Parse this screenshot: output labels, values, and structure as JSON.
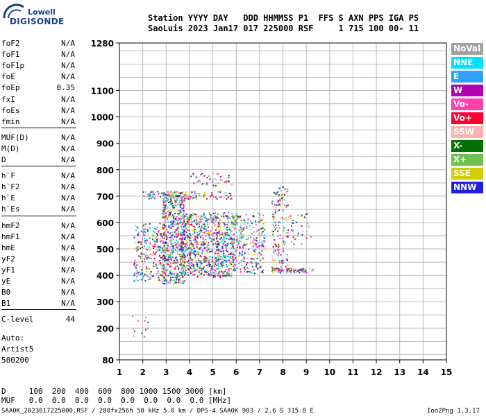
{
  "logo": {
    "line1": "Lowell",
    "line2": "DIGISONDE"
  },
  "header": {
    "line1": "Station YYYY DAY   DDD HHMMSS P1  FFS S AXN PPS IGA PS",
    "line2": "SaoLuis 2023 Jan17 017 225000 RSF     1 715 100 00- 11"
  },
  "params": [
    {
      "name": "foF2",
      "value": "N/A"
    },
    {
      "name": "foF1",
      "value": "N/A"
    },
    {
      "name": "foF1p",
      "value": "N/A"
    },
    {
      "name": "foE",
      "value": "N/A"
    },
    {
      "name": "foEp",
      "value": "0.35"
    },
    {
      "name": "fxI",
      "value": "N/A"
    },
    {
      "name": "foEs",
      "value": "N/A"
    },
    {
      "name": "fmin",
      "value": "N/A"
    },
    {
      "name": "MUF(D)",
      "value": "N/A"
    },
    {
      "name": "M(D)",
      "value": "N/A"
    },
    {
      "name": "D",
      "value": "N/A"
    },
    {
      "name": "h`F",
      "value": "N/A"
    },
    {
      "name": "h`F2",
      "value": "N/A"
    },
    {
      "name": "h`E",
      "value": "N/A"
    },
    {
      "name": "h`Es",
      "value": "N/A"
    },
    {
      "name": "hmF2",
      "value": "N/A"
    },
    {
      "name": "hmF1",
      "value": "N/A"
    },
    {
      "name": "hmE",
      "value": "N/A"
    },
    {
      "name": "yF2",
      "value": "N/A"
    },
    {
      "name": "yF1",
      "value": "N/A"
    },
    {
      "name": "yE",
      "value": "N/A"
    },
    {
      "name": "B0",
      "value": "N/A"
    },
    {
      "name": "B1",
      "value": "N/A"
    },
    {
      "name": "C-level",
      "value": "44"
    }
  ],
  "autoscaling": {
    "line1": "Auto:",
    "line2": "Artist5",
    "line3": "500200"
  },
  "footer": {
    "d_row": "D     100  200  400  600  800 1000 1500 3000 [km]",
    "muf_row": "MUF   0.0  0.0  0.0  0.0  0.0  0.0  0.0  0.0 [MHz]",
    "file_info": "SAA0K_2023017225000.RSF / 280fx256h 50 kHz 5.0 km / DPS-4 SAA0K 903 / 2.6 S 315.8 E",
    "version": "Ion2Png 1.3.17"
  },
  "legend": [
    {
      "label": "NoVal",
      "color": "#a0a0a0"
    },
    {
      "label": "NNE",
      "color": "#00e0ff"
    },
    {
      "label": "E",
      "color": "#30a0ff"
    },
    {
      "label": "W",
      "color": "#b000b0"
    },
    {
      "label": "Vo-",
      "color": "#ff40b0"
    },
    {
      "label": "Vo+",
      "color": "#ff0030"
    },
    {
      "label": "SSW",
      "color": "#ffb0b0"
    },
    {
      "label": "X-",
      "color": "#007000"
    },
    {
      "label": "X+",
      "color": "#70c050"
    },
    {
      "label": "SSE",
      "color": "#d0d000"
    },
    {
      "label": "NNW",
      "color": "#2020e0"
    }
  ],
  "chart_data": {
    "type": "scatter",
    "title": "",
    "xlabel": "",
    "ylabel": "",
    "xlim": [
      1,
      15
    ],
    "ylim": [
      80,
      1280
    ],
    "x_ticks": [
      "1",
      "2",
      "3",
      "4",
      "5",
      "6",
      "7",
      "8",
      "9",
      "10",
      "11",
      "12",
      "13",
      "14",
      "15"
    ],
    "y_ticks": [
      {
        "value": 80,
        "label": "80"
      },
      {
        "value": 200,
        "label": "200"
      },
      {
        "value": 300,
        "label": "300"
      },
      {
        "value": 400,
        "label": "400"
      },
      {
        "value": 500,
        "label": "500"
      },
      {
        "value": 600,
        "label": "600"
      },
      {
        "value": 700,
        "label": "700"
      },
      {
        "value": 800,
        "label": "800"
      },
      {
        "value": 900,
        "label": "900"
      },
      {
        "value": 1000,
        "label": "1000"
      },
      {
        "value": 1100,
        "label": "1100"
      },
      {
        "value": 1280,
        "label": "1280"
      }
    ],
    "grid": true,
    "clusters": [
      {
        "f": [
          1.4,
          2.2
        ],
        "h": [
          150,
          260
        ],
        "n": 14
      },
      {
        "f": [
          1.6,
          3.0
        ],
        "h": [
          380,
          600
        ],
        "n": 260
      },
      {
        "f": [
          2.8,
          3.8
        ],
        "h": [
          370,
          720
        ],
        "n": 620
      },
      {
        "f": [
          3.6,
          5.9
        ],
        "h": [
          395,
          640
        ],
        "n": 900
      },
      {
        "f": [
          2.0,
          5.8
        ],
        "h": [
          690,
          720
        ],
        "n": 130
      },
      {
        "f": [
          4.0,
          5.8
        ],
        "h": [
          740,
          790
        ],
        "n": 40
      },
      {
        "f": [
          5.8,
          7.2
        ],
        "h": [
          410,
          640
        ],
        "n": 260
      },
      {
        "f": [
          7.5,
          8.2
        ],
        "h": [
          410,
          740
        ],
        "n": 170
      },
      {
        "f": [
          8.2,
          9.2
        ],
        "h": [
          520,
          640
        ],
        "n": 40
      },
      {
        "f": [
          7.5,
          9.3
        ],
        "h": [
          412,
          428
        ],
        "n": 70
      }
    ]
  }
}
